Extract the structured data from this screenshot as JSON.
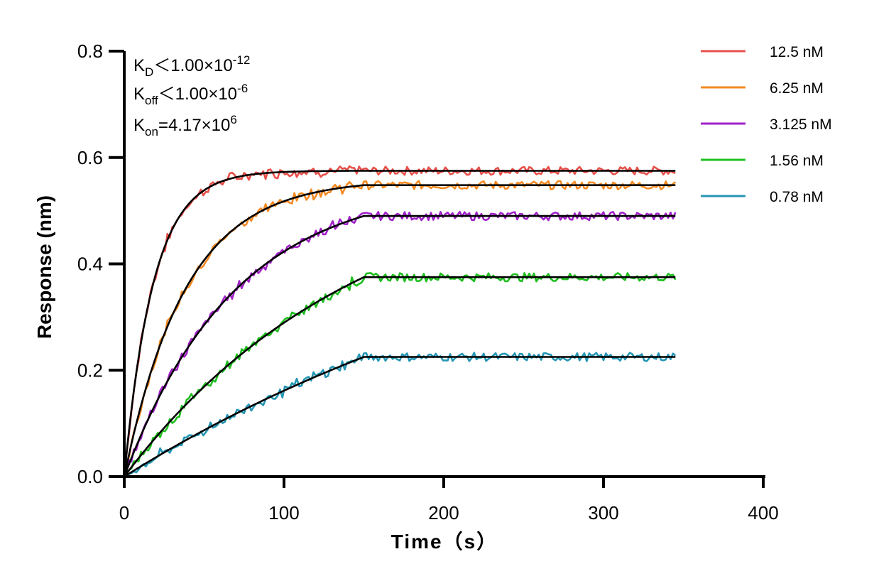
{
  "chart_data": {
    "type": "line",
    "xlabel": "Time（s）",
    "ylabel": "Response (nm)",
    "xlim": [
      0,
      400
    ],
    "ylim": [
      0,
      0.8
    ],
    "x_ticks": [
      "0",
      "100",
      "200",
      "300",
      "400"
    ],
    "y_ticks": [
      "0.0",
      "0.2",
      "0.4",
      "0.6",
      "0.8"
    ],
    "grid": false,
    "legend_position": "top-right",
    "x_end": 345,
    "association_end": 150,
    "annotations": {
      "kd": {
        "main": "K",
        "sub": "D",
        "rest": "＜1.00×10",
        "sup": "-12"
      },
      "koff": {
        "main": "K",
        "sub": "off",
        "rest": "＜1.00×10",
        "sup": "-6"
      },
      "kon": {
        "main": "K",
        "sub": "on",
        "rest": "=4.17×10",
        "sup": "6"
      }
    },
    "fit_color": "#000000",
    "series": [
      {
        "name": "12.5 nM",
        "color": "#e8504a",
        "plateau": 0.575,
        "k_obs": 0.055
      },
      {
        "name": "6.25 nM",
        "color": "#f28a23",
        "plateau": 0.548,
        "k_obs": 0.026
      },
      {
        "name": "3.125 nM",
        "color": "#a221c9",
        "plateau": 0.49,
        "k_obs": 0.0145
      },
      {
        "name": "1.56 nM",
        "color": "#1fbf1f",
        "plateau": 0.375,
        "k_obs": 0.0068
      },
      {
        "name": "0.78 nM",
        "color": "#2596b4",
        "plateau": 0.225,
        "k_obs": 0.0032
      }
    ]
  }
}
